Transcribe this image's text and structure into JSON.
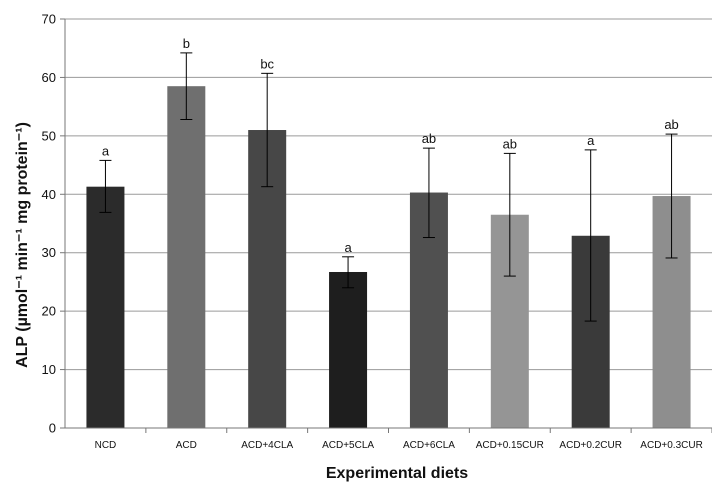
{
  "chart_data": {
    "type": "bar",
    "title": "",
    "xlabel": "Experimental diets",
    "ylabel": "ALP (µmol⁻¹ min⁻¹ mg protein⁻¹)",
    "ylim": [
      0,
      70
    ],
    "yticks": [
      0,
      10,
      20,
      30,
      40,
      50,
      60,
      70
    ],
    "grid": "horizontal",
    "categories": [
      "NCD",
      "ACD",
      "ACD+4CLA",
      "ACD+5CLA",
      "ACD+6CLA",
      "ACD+0.15CUR",
      "ACD+0.2CUR",
      "ACD+0.3CUR"
    ],
    "values": [
      41.3,
      58.5,
      51.0,
      26.7,
      40.3,
      36.5,
      32.9,
      39.7
    ],
    "error_upper": [
      45.8,
      64.2,
      60.7,
      29.3,
      47.9,
      47.0,
      47.6,
      50.3
    ],
    "error_lower": [
      36.9,
      52.8,
      41.3,
      24.0,
      32.6,
      26.0,
      18.3,
      29.1
    ],
    "significance_labels": [
      "a",
      "b",
      "bc",
      "a",
      "ab",
      "ab",
      "a",
      "ab"
    ],
    "bar_colors": [
      "#2b2b2b",
      "#6f6f6f",
      "#474747",
      "#1e1e1e",
      "#505050",
      "#959595",
      "#3a3a3a",
      "#8e8e8e"
    ],
    "grid_color": "#9a9a9a",
    "axis_color": "#777777"
  }
}
